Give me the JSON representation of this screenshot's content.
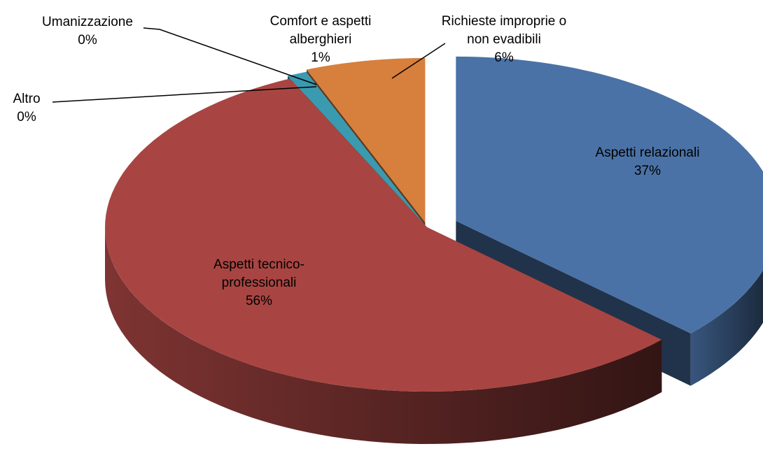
{
  "chart_data": {
    "type": "pie3d",
    "categories": [
      "Aspetti relazionali",
      "Aspetti tecnico-professionali",
      "Altro",
      "Umanizzazione",
      "Comfort e aspetti alberghieri",
      "Richieste improprie o non evadibili"
    ],
    "values": [
      37,
      56,
      0,
      0,
      1,
      6
    ],
    "value_labels": [
      "37%",
      "56%",
      "0%",
      "0%",
      "1%",
      "6%"
    ],
    "colors": [
      "#4a72a6",
      "#a84542",
      "#2b2a45",
      "#5a4a7a",
      "#3a9ab0",
      "#d77f3c"
    ]
  }
}
